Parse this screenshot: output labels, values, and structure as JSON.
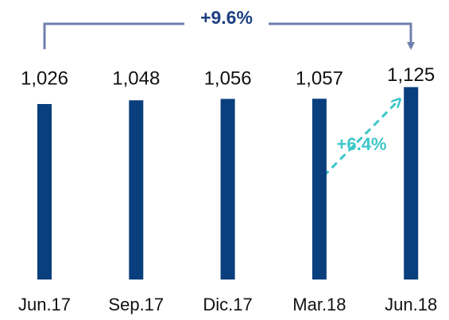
{
  "chart_data": {
    "type": "bar",
    "categories": [
      "Jun.17",
      "Sep.17",
      "Dic.17",
      "Mar.18",
      "Jun.18"
    ],
    "values": [
      1026,
      1048,
      1056,
      1057,
      1125
    ],
    "value_labels": [
      "1,026",
      "1,048",
      "1,056",
      "1,057",
      "1,125"
    ],
    "color": "#0a3f7e",
    "annotations": [
      "+9.6%",
      "+6.4%"
    ]
  }
}
